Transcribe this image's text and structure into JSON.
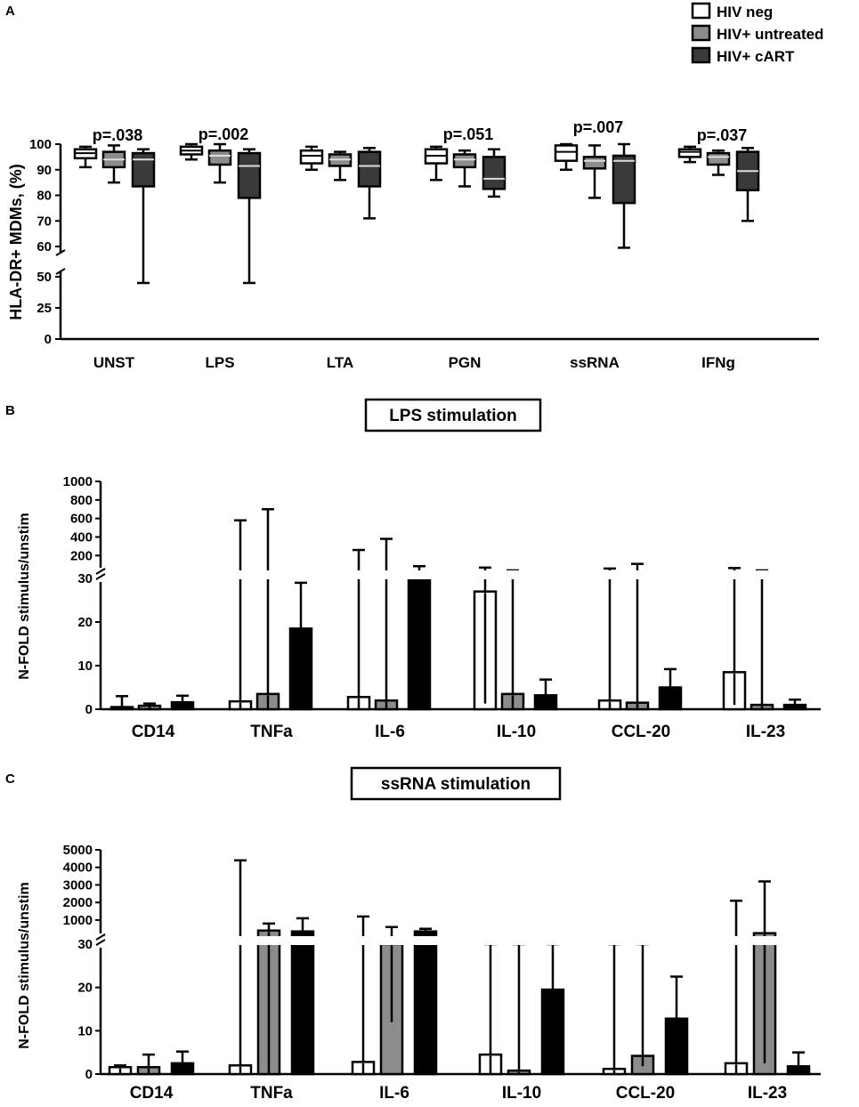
{
  "legend": [
    {
      "label": "HIV neg",
      "color": "#ffffff"
    },
    {
      "label": "HIV+ untreated",
      "color": "#8c8c8c"
    },
    {
      "label": "HIV+ cART",
      "color": "#3a3a3a"
    }
  ],
  "colors": {
    "box_neg": "#ffffff",
    "box_untreated": "#8c8c8c",
    "box_cart": "#3a3a3a",
    "bar_neg": "#ffffff",
    "bar_untreated": "#8c8c8c",
    "bar_cart": "#000000"
  },
  "chart_data": [
    {
      "panel": "A",
      "type": "box",
      "ylabel": "HLA-DR+ MDMs, (%)",
      "categories": [
        "UNST",
        "LPS",
        "LTA",
        "PGN",
        "ssRNA",
        "IFNg"
      ],
      "y_ticks": [
        "0",
        "25",
        "50",
        "60",
        "70",
        "80",
        "90",
        "100"
      ],
      "axis_break": [
        50,
        60
      ],
      "pvalues": [
        "p=.038",
        "p=.002",
        "",
        "p=.051",
        "p=.007",
        "p=.037"
      ],
      "series": [
        {
          "name": "HIV neg",
          "boxes": [
            {
              "min": 91,
              "q1": 94.5,
              "median": 96.5,
              "q3": 98,
              "max": 99
            },
            {
              "min": 94,
              "q1": 96,
              "median": 97.5,
              "q3": 99,
              "max": 100
            },
            {
              "min": 90,
              "q1": 92.5,
              "median": 95.5,
              "q3": 97.5,
              "max": 99
            },
            {
              "min": 86,
              "q1": 92.5,
              "median": 95.5,
              "q3": 98,
              "max": 99
            },
            {
              "min": 90,
              "q1": 93.5,
              "median": 97,
              "q3": 99.5,
              "max": 100
            },
            {
              "min": 93,
              "q1": 95,
              "median": 97,
              "q3": 98,
              "max": 99
            }
          ]
        },
        {
          "name": "HIV+ untreated",
          "boxes": [
            {
              "min": 85,
              "q1": 91,
              "median": 94,
              "q3": 97,
              "max": 99.5
            },
            {
              "min": 85,
              "q1": 92,
              "median": 95.5,
              "q3": 97.5,
              "max": 100
            },
            {
              "min": 86,
              "q1": 91.5,
              "median": 94,
              "q3": 96,
              "max": 97
            },
            {
              "min": 83.5,
              "q1": 91,
              "median": 94,
              "q3": 96,
              "max": 97.5
            },
            {
              "min": 79,
              "q1": 90.5,
              "median": 93.5,
              "q3": 95,
              "max": 99.5
            },
            {
              "min": 88,
              "q1": 92,
              "median": 95,
              "q3": 96.5,
              "max": 97.5
            }
          ]
        },
        {
          "name": "HIV+ cART",
          "boxes": [
            {
              "min": 45,
              "q1": 83.5,
              "median": 94,
              "q3": 96.5,
              "max": 98
            },
            {
              "min": 45,
              "q1": 79,
              "median": 91.5,
              "q3": 96.5,
              "max": 98
            },
            {
              "min": 71,
              "q1": 83.5,
              "median": 91.5,
              "q3": 97,
              "max": 98.5
            },
            {
              "min": 79.5,
              "q1": 82.5,
              "median": 86.5,
              "q3": 95,
              "max": 98
            },
            {
              "min": 59.5,
              "q1": 77,
              "median": 93.5,
              "q3": 95.5,
              "max": 100
            },
            {
              "min": 70,
              "q1": 82,
              "median": 89.5,
              "q3": 97,
              "max": 98.5
            }
          ]
        }
      ]
    },
    {
      "panel": "B",
      "type": "bar",
      "title": "LPS stimulation",
      "ylabel": "N-FOLD stimulus/unstim",
      "categories": [
        "CD14",
        "TNFa",
        "IL-6",
        "IL-10",
        "CCL-20",
        "IL-23"
      ],
      "y_ticks": [
        "0",
        "10",
        "20",
        "30",
        "200",
        "400",
        "600",
        "800",
        "1000"
      ],
      "lower_axis": [
        0,
        30
      ],
      "upper_axis": [
        30,
        1000
      ],
      "series": [
        {
          "name": "HIV neg",
          "values": [
            0.5,
            1.8,
            2.8,
            27.0,
            2.0,
            8.5
          ],
          "err_low": [
            0,
            0,
            0,
            1.3,
            0,
            1.0
          ],
          "err_high": [
            3.0,
            580,
            260,
            70,
            60,
            65
          ]
        },
        {
          "name": "HIV+ untreated",
          "values": [
            0.8,
            3.5,
            2.0,
            3.5,
            1.5,
            1.0
          ],
          "err_low": [
            0,
            0,
            0,
            0,
            0,
            0
          ],
          "err_high": [
            1.3,
            700,
            380,
            40,
            110,
            40
          ]
        },
        {
          "name": "HIV+ cART",
          "values": [
            1.6,
            18.5,
            30.0,
            3.2,
            5.0,
            1.0
          ],
          "err_low": [
            0,
            0,
            0,
            0,
            0,
            0
          ],
          "err_high": [
            3.1,
            29.0,
            85,
            6.8,
            9.2,
            2.2
          ]
        }
      ]
    },
    {
      "panel": "C",
      "type": "bar",
      "title": "ssRNA stimulation",
      "ylabel": "N-FOLD stimulus/unstim",
      "categories": [
        "CD14",
        "TNFa",
        "IL-6",
        "IL-10",
        "CCL-20",
        "IL-23"
      ],
      "y_ticks": [
        "0",
        "10",
        "20",
        "30",
        "1000",
        "2000",
        "3000",
        "4000",
        "5000"
      ],
      "lower_axis": [
        0,
        30
      ],
      "upper_axis": [
        30,
        5000
      ],
      "series": [
        {
          "name": "HIV neg",
          "values": [
            1.6,
            2.0,
            2.8,
            4.5,
            1.2,
            2.5
          ],
          "err_low": [
            0,
            0,
            0,
            0,
            0,
            0
          ],
          "err_high": [
            2.0,
            4400,
            1200,
            30,
            30,
            2100
          ]
        },
        {
          "name": "HIV+ untreated",
          "values": [
            1.6,
            400,
            30,
            0.8,
            4.2,
            250
          ],
          "err_low": [
            0,
            0,
            12,
            0,
            1.8,
            2.5
          ],
          "err_high": [
            4.5,
            800,
            600,
            30,
            30,
            3200
          ]
        },
        {
          "name": "HIV+ cART",
          "values": [
            2.5,
            350,
            350,
            19.5,
            12.8,
            1.8
          ],
          "err_low": [
            0,
            0,
            0,
            0,
            0,
            0
          ],
          "err_high": [
            5.2,
            1100,
            500,
            30,
            22.5,
            5.0
          ]
        }
      ]
    }
  ],
  "panel_labels": [
    "A",
    "B",
    "C"
  ]
}
